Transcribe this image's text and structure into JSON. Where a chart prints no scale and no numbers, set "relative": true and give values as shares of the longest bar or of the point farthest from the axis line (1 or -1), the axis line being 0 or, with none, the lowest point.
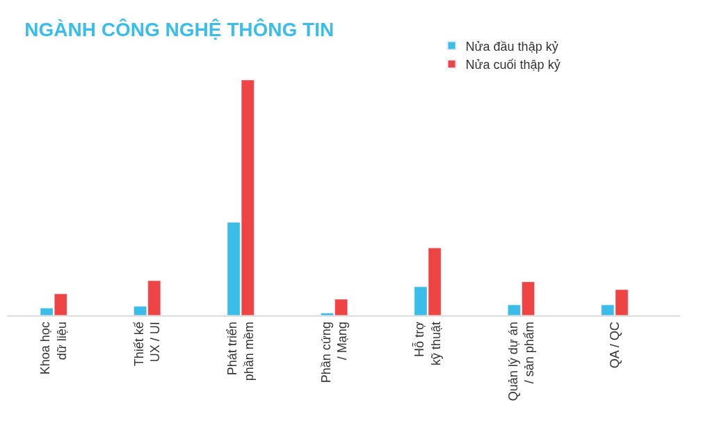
{
  "chart_data": {
    "type": "bar",
    "title": "NGÀNH CÔNG NGHỆ THÔNG TIN",
    "relative": true,
    "legend": "top right",
    "categories": [
      "Khoa học\ndữ liệu",
      "Thiết kế\nUX / UI",
      "Phát triển\nphần mềm",
      "Phần cứng\n/ Mạng",
      "Hỗ trợ\nkỹ thuật",
      "Quản lý dự án\n/ sản phẩm",
      "QA / QC"
    ],
    "series": [
      {
        "name": "Nửa đầu thập kỷ",
        "color": "#3bbde9",
        "values": [
          0.03,
          0.038,
          0.395,
          0.009,
          0.121,
          0.044,
          0.044
        ]
      },
      {
        "name": "Nửa cuối thập kỷ",
        "color": "#ef4444",
        "values": [
          0.091,
          0.147,
          1,
          0.068,
          0.286,
          0.142,
          0.109
        ]
      }
    ]
  }
}
